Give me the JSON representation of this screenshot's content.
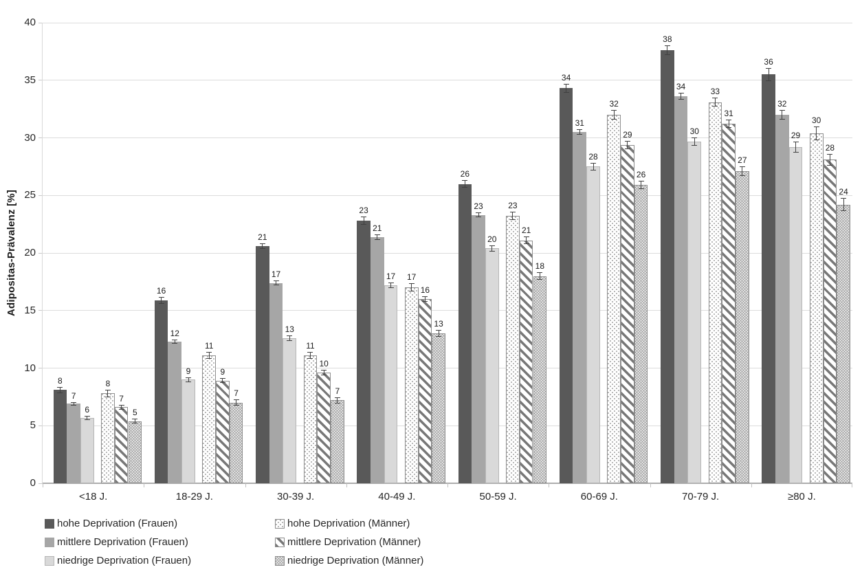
{
  "chart_data": {
    "type": "bar",
    "title": "",
    "xlabel": "",
    "ylabel": "Adipositas-Prävalenz [%]",
    "ylim": [
      0,
      40
    ],
    "yticks": [
      0,
      5,
      10,
      15,
      20,
      25,
      30,
      35,
      40
    ],
    "grid": true,
    "legend_position": "bottom",
    "categories": [
      "<18 J.",
      "18-29 J.",
      "30-39 J.",
      "40-49 J.",
      "50-59 J.",
      "60-69 J.",
      "70-79 J.",
      "≥80 J."
    ],
    "group_gap_after_index": 2,
    "series": [
      {
        "name": "hohe Deprivation (Frauen)",
        "pattern": "solid-dark",
        "color": "#595959",
        "values": [
          8.1,
          15.9,
          20.6,
          22.8,
          26.0,
          34.3,
          37.6,
          35.5
        ],
        "labels": [
          8,
          16,
          21,
          23,
          26,
          34,
          38,
          36
        ],
        "errors": [
          0.2,
          0.25,
          0.2,
          0.3,
          0.25,
          0.3,
          0.35,
          0.5
        ]
      },
      {
        "name": "mittlere Deprivation (Frauen)",
        "pattern": "solid-medium",
        "color": "#a6a6a6",
        "values": [
          6.9,
          12.3,
          17.4,
          21.4,
          23.3,
          30.5,
          33.6,
          32.0
        ],
        "labels": [
          7,
          12,
          17,
          21,
          23,
          31,
          34,
          32
        ],
        "errors": [
          0.1,
          0.12,
          0.15,
          0.18,
          0.15,
          0.2,
          0.25,
          0.35
        ]
      },
      {
        "name": "niedrige Deprivation (Frauen)",
        "pattern": "solid-light",
        "color": "#d9d9d9",
        "values": [
          5.7,
          9.0,
          12.6,
          17.2,
          20.4,
          27.5,
          29.7,
          29.2
        ],
        "labels": [
          6,
          9,
          13,
          17,
          20,
          28,
          30,
          29
        ],
        "errors": [
          0.12,
          0.15,
          0.18,
          0.2,
          0.2,
          0.25,
          0.3,
          0.4
        ]
      },
      {
        "name": "hohe Deprivation (Männer)",
        "pattern": "dot-sparse",
        "color": "#ffffff",
        "values": [
          7.8,
          11.1,
          11.1,
          17.0,
          23.2,
          32.0,
          33.1,
          30.4
        ],
        "labels": [
          8,
          11,
          11,
          17,
          23,
          32,
          33,
          30
        ],
        "errors": [
          0.25,
          0.25,
          0.25,
          0.3,
          0.3,
          0.35,
          0.35,
          0.55
        ]
      },
      {
        "name": "mittlere Deprivation (Männer)",
        "pattern": "diag-stripe",
        "color": "#787878",
        "values": [
          6.6,
          8.9,
          9.6,
          16.0,
          21.1,
          29.4,
          31.2,
          28.1
        ],
        "labels": [
          7,
          9,
          10,
          16,
          21,
          29,
          31,
          28
        ],
        "errors": [
          0.15,
          0.15,
          0.18,
          0.2,
          0.25,
          0.3,
          0.3,
          0.45
        ]
      },
      {
        "name": "niedrige Deprivation (Männer)",
        "pattern": "dot-dense",
        "color": "#9a9a9a",
        "values": [
          5.4,
          7.0,
          7.2,
          13.0,
          18.0,
          25.9,
          27.1,
          24.2
        ],
        "labels": [
          5,
          7,
          7,
          13,
          18,
          26,
          27,
          24
        ],
        "errors": [
          0.15,
          0.2,
          0.2,
          0.25,
          0.25,
          0.3,
          0.35,
          0.5
        ]
      }
    ],
    "legend_columns": [
      [
        0,
        1,
        2
      ],
      [
        3,
        4,
        5
      ]
    ]
  },
  "style_colors": {
    "gridline": "#dcdcdc",
    "axis_line": "#adadad",
    "error_bar": "#404040",
    "text": "#262626",
    "background": "#ffffff"
  }
}
